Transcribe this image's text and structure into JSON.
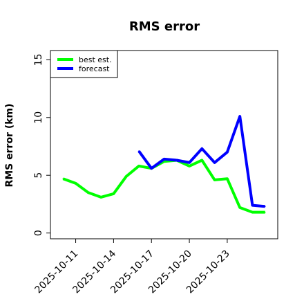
{
  "chart_data": {
    "type": "line",
    "title": "RMS error",
    "xlabel": "",
    "ylabel": "RMS error (km)",
    "x": [
      "2025-10-10",
      "2025-10-11",
      "2025-10-12",
      "2025-10-13",
      "2025-10-14",
      "2025-10-15",
      "2025-10-16",
      "2025-10-17",
      "2025-10-18",
      "2025-10-19",
      "2025-10-20",
      "2025-10-21",
      "2025-10-22",
      "2025-10-23",
      "2025-10-24",
      "2025-10-25",
      "2025-10-26"
    ],
    "xticks": [
      "2025-10-11",
      "2025-10-14",
      "2025-10-17",
      "2025-10-20",
      "2025-10-23"
    ],
    "xlim": [
      "2025-10-09",
      "2025-10-27"
    ],
    "ylim": [
      -0.5,
      15.8
    ],
    "yticks": [
      0,
      5,
      10,
      15
    ],
    "grid": false,
    "legend_position": "top-left",
    "series": [
      {
        "name": "best est.",
        "color": "#00ff00",
        "points": [
          [
            "2025-10-10",
            4.7
          ],
          [
            "2025-10-11",
            4.3
          ],
          [
            "2025-10-12",
            3.5
          ],
          [
            "2025-10-13",
            3.1
          ],
          [
            "2025-10-14",
            3.4
          ],
          [
            "2025-10-15",
            4.9
          ],
          [
            "2025-10-16",
            5.8
          ],
          [
            "2025-10-17",
            5.6
          ],
          [
            "2025-10-18",
            6.2
          ],
          [
            "2025-10-19",
            6.3
          ],
          [
            "2025-10-20",
            5.8
          ],
          [
            "2025-10-21",
            6.3
          ],
          [
            "2025-10-22",
            4.6
          ],
          [
            "2025-10-23",
            4.7
          ],
          [
            "2025-10-24",
            2.2
          ],
          [
            "2025-10-25",
            1.8
          ],
          [
            "2025-10-26",
            1.8
          ]
        ]
      },
      {
        "name": "forecast",
        "color": "#0000ff",
        "points": [
          [
            "2025-10-16",
            7.1
          ],
          [
            "2025-10-17",
            5.6
          ],
          [
            "2025-10-18",
            6.4
          ],
          [
            "2025-10-19",
            6.3
          ],
          [
            "2025-10-20",
            6.1
          ],
          [
            "2025-10-21",
            7.3
          ],
          [
            "2025-10-22",
            6.1
          ],
          [
            "2025-10-23",
            7.0
          ],
          [
            "2025-10-24",
            10.1
          ],
          [
            "2025-10-25",
            2.4
          ],
          [
            "2025-10-26",
            2.3
          ]
        ]
      }
    ]
  }
}
